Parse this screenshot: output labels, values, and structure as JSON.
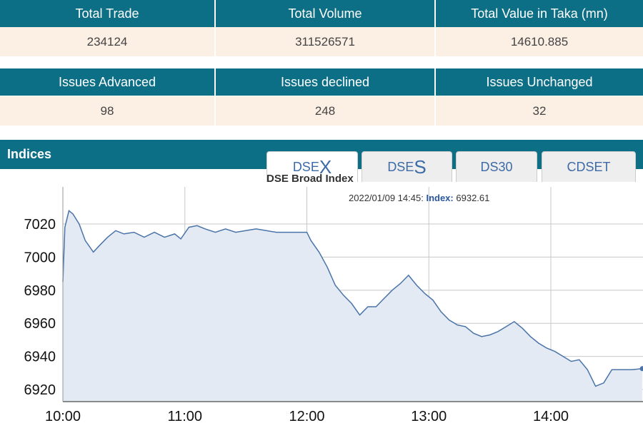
{
  "tables": [
    {
      "headers": [
        "Total Trade",
        "Total Volume",
        "Total Value in Taka (mn)"
      ],
      "rows": [
        [
          234124,
          311526571,
          14610.885
        ]
      ]
    },
    {
      "headers": [
        "Issues Advanced",
        "Issues declined",
        "Issues Unchanged"
      ],
      "rows": [
        [
          98,
          248,
          32
        ]
      ]
    }
  ],
  "section_title": "Indices",
  "tabs": [
    {
      "prefix": "DSE",
      "suffix": "X"
    },
    {
      "prefix": "DSE",
      "suffix": "S"
    },
    {
      "prefix": "DS30"
    },
    {
      "prefix": "CDSET"
    }
  ],
  "chart_data": {
    "type": "area",
    "title": "DSE Broad Index",
    "annotation": {
      "time": "2022/01/09 14:45:",
      "label": "Index:",
      "value": "6932.61"
    },
    "x": [
      0,
      1,
      3,
      5,
      8,
      11,
      15,
      18,
      22,
      26,
      30,
      35,
      40,
      45,
      50,
      55,
      58,
      62,
      66,
      70,
      75,
      80,
      85,
      90,
      95,
      100,
      105,
      110,
      115,
      120,
      122,
      126,
      130,
      134,
      138,
      142,
      146,
      150,
      154,
      158,
      162,
      166,
      170,
      174,
      178,
      182,
      186,
      190,
      194,
      198,
      202,
      206,
      210,
      214,
      218,
      222,
      226,
      230,
      234,
      238,
      242,
      246,
      250,
      254,
      258,
      262,
      266,
      270,
      275,
      280,
      285
    ],
    "series": [
      {
        "name": "Index",
        "color": "#4a74a8",
        "fill": "#e3eaf3",
        "values": [
          6985,
          7018,
          7028,
          7026,
          7020,
          7010,
          7003,
          7007,
          7012,
          7016,
          7014,
          7015,
          7012,
          7015,
          7012,
          7014,
          7011,
          7018,
          7019,
          7017,
          7015,
          7017,
          7015,
          7016,
          7017,
          7016,
          7015,
          7015,
          7015,
          7015,
          7010,
          7003,
          6994,
          6983,
          6977,
          6972,
          6965,
          6970,
          6970,
          6975,
          6980,
          6984,
          6989,
          6983,
          6978,
          6974,
          6967,
          6962,
          6959,
          6958,
          6954,
          6952,
          6953,
          6955,
          6958,
          6961,
          6957,
          6952,
          6948,
          6945,
          6943,
          6940,
          6937,
          6938,
          6932,
          6922,
          6924,
          6932,
          6932,
          6932,
          6932.61
        ]
      }
    ],
    "xlim": [
      0,
      286
    ],
    "xticks": [
      {
        "value": 0,
        "label": "10:00"
      },
      {
        "value": 60,
        "label": "11:00"
      },
      {
        "value": 120,
        "label": "12:00"
      },
      {
        "value": 180,
        "label": "13:00"
      },
      {
        "value": 240,
        "label": "14:00"
      }
    ],
    "ylim": [
      6912.7,
      7042.4
    ],
    "yticks": [
      6920,
      6940,
      6960,
      6980,
      7000,
      7020
    ],
    "grid": true
  }
}
